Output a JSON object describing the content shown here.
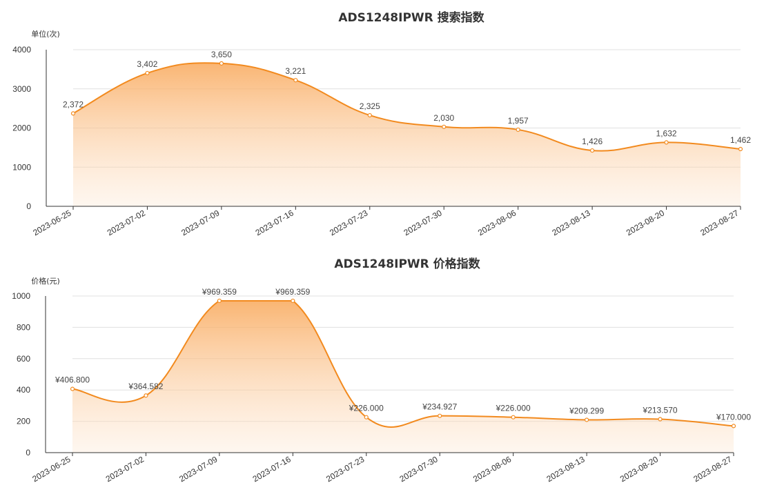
{
  "chart_data": [
    {
      "type": "area",
      "title": "ADS1248IPWR 搜索指数",
      "unit_label": "单位(次)",
      "categories": [
        "2023-06-25",
        "2023-07-02",
        "2023-07-09",
        "2023-07-16",
        "2023-07-23",
        "2023-07-30",
        "2023-08-06",
        "2023-08-13",
        "2023-08-20",
        "2023-08-27"
      ],
      "values": [
        2372,
        3402,
        3650,
        3221,
        2325,
        2030,
        1957,
        1426,
        1632,
        1462
      ],
      "value_labels": [
        "2,372",
        "3,402",
        "3,650",
        "3,221",
        "2,325",
        "2,030",
        "1,957",
        "1,426",
        "1,632",
        "1,462"
      ],
      "yticks": [
        "0",
        "1000",
        "2000",
        "3000",
        "4000"
      ],
      "ylim": [
        0,
        4000
      ],
      "grid": true,
      "color": "#f28a1e"
    },
    {
      "type": "area",
      "title": "ADS1248IPWR 价格指数",
      "unit_label": "价格(元)",
      "categories": [
        "2023-06-25",
        "2023-07-02",
        "2023-07-09",
        "2023-07-16",
        "2023-07-23",
        "2023-07-30",
        "2023-08-06",
        "2023-08-13",
        "2023-08-20",
        "2023-08-27"
      ],
      "values": [
        406.8,
        364.582,
        969.359,
        969.359,
        226.0,
        234.927,
        226.0,
        209.299,
        213.57,
        170.0
      ],
      "value_labels": [
        "¥406.800",
        "¥364.582",
        "¥969.359",
        "¥969.359",
        "¥226.000",
        "¥234.927",
        "¥226.000",
        "¥209.299",
        "¥213.570",
        "¥170.000"
      ],
      "yticks": [
        "0",
        "200",
        "400",
        "600",
        "800",
        "1000"
      ],
      "ylim": [
        0,
        1000
      ],
      "grid": true,
      "color": "#f28a1e"
    }
  ]
}
